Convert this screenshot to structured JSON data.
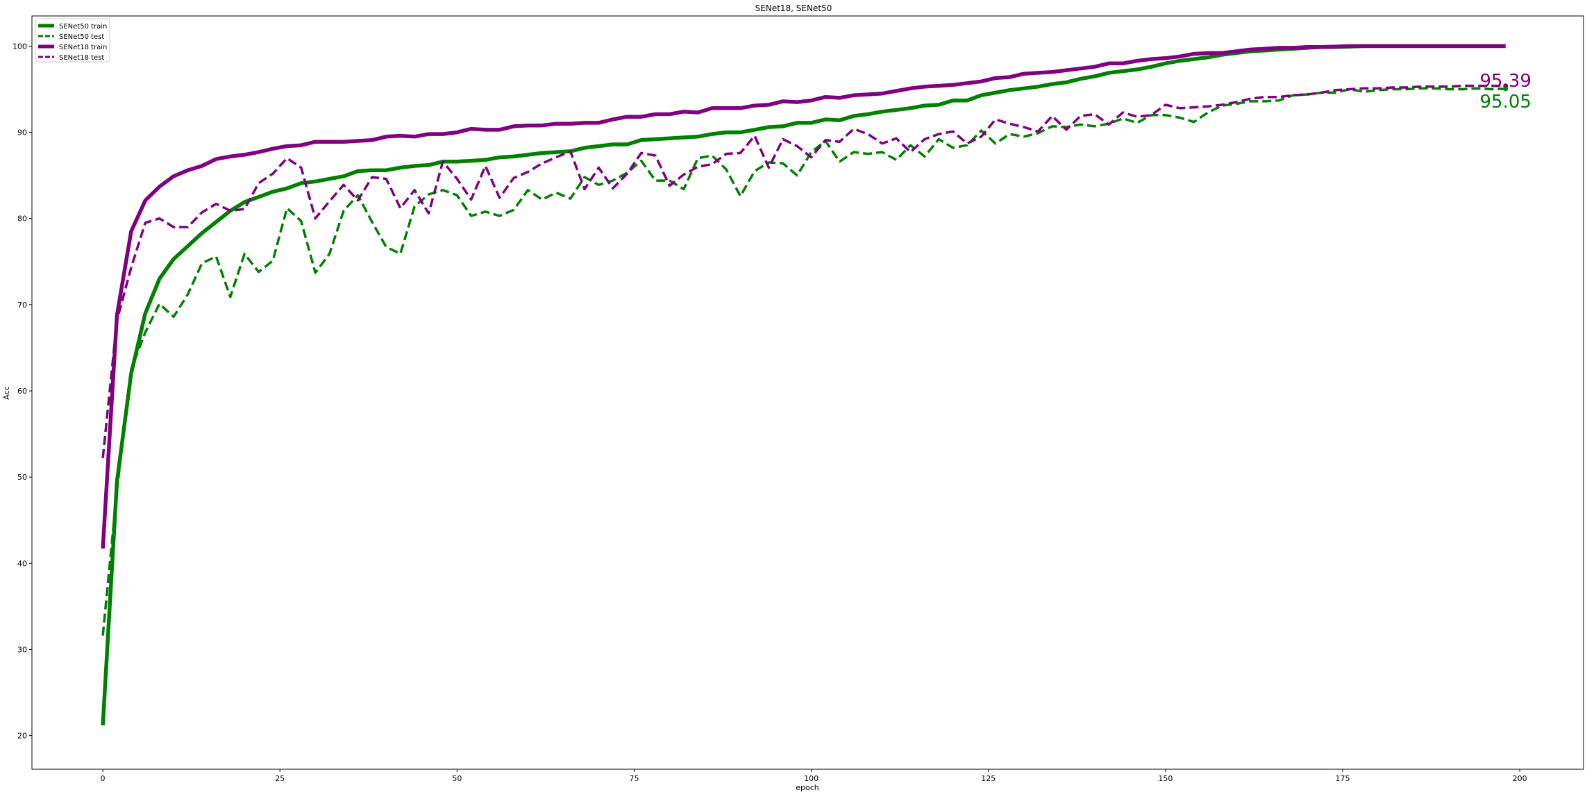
{
  "chart_data": {
    "type": "line",
    "title": "SENet18, SENet50",
    "xlabel": "epoch",
    "ylabel": "Acc",
    "xlim": [
      -10,
      209
    ],
    "ylim": [
      16.1,
      103.5
    ],
    "xticks": [
      0,
      25,
      50,
      75,
      100,
      125,
      150,
      175,
      200
    ],
    "yticks": [
      20,
      30,
      40,
      50,
      60,
      70,
      80,
      90,
      100
    ],
    "grid": false,
    "legend_position": "upper left",
    "series": [
      {
        "name": "SENet50 train",
        "color": "#008000",
        "style": "solid",
        "x": [
          0,
          2,
          4,
          6,
          8,
          10,
          12,
          14,
          16,
          18,
          20,
          22,
          24,
          26,
          28,
          30,
          32,
          34,
          36,
          38,
          40,
          42,
          44,
          46,
          48,
          50,
          52,
          54,
          56,
          58,
          60,
          62,
          64,
          66,
          68,
          70,
          72,
          74,
          76,
          78,
          80,
          82,
          84,
          86,
          88,
          90,
          92,
          94,
          96,
          98,
          100,
          102,
          104,
          106,
          108,
          110,
          112,
          114,
          116,
          118,
          120,
          122,
          124,
          126,
          128,
          130,
          132,
          134,
          136,
          138,
          140,
          142,
          144,
          146,
          148,
          150,
          152,
          154,
          156,
          158,
          160,
          162,
          164,
          166,
          168,
          170,
          172,
          174,
          176,
          178,
          180,
          182,
          184,
          186,
          188,
          190,
          192,
          194,
          196,
          198
        ],
        "y": [
          21.2,
          49.5,
          62,
          69,
          73,
          75.3,
          76.8,
          78.3,
          79.6,
          80.9,
          81.9,
          82.5,
          83.1,
          83.5,
          84.1,
          84.3,
          84.6,
          84.9,
          85.5,
          85.6,
          85.6,
          85.9,
          86.1,
          86.2,
          86.6,
          86.6,
          86.7,
          86.8,
          87.1,
          87.2,
          87.4,
          87.6,
          87.7,
          87.8,
          88.2,
          88.4,
          88.6,
          88.6,
          89.1,
          89.2,
          89.3,
          89.4,
          89.5,
          89.8,
          90,
          90,
          90.3,
          90.6,
          90.7,
          91.1,
          91.1,
          91.5,
          91.4,
          91.9,
          92.1,
          92.4,
          92.6,
          92.8,
          93.1,
          93.2,
          93.7,
          93.7,
          94.3,
          94.6,
          94.9,
          95.1,
          95.3,
          95.6,
          95.8,
          96.2,
          96.5,
          96.9,
          97.1,
          97.3,
          97.6,
          98,
          98.3,
          98.5,
          98.7,
          99,
          99.2,
          99.4,
          99.5,
          99.6,
          99.7,
          99.8,
          99.9,
          99.9,
          99.95,
          100,
          100,
          100,
          100,
          100,
          100,
          100,
          100,
          100,
          100,
          100
        ]
      },
      {
        "name": "SENet50 test",
        "color": "#008000",
        "style": "dashed",
        "x": [
          0,
          2,
          4,
          6,
          8,
          10,
          12,
          14,
          16,
          18,
          20,
          22,
          24,
          26,
          28,
          30,
          32,
          34,
          36,
          38,
          40,
          42,
          44,
          46,
          48,
          50,
          52,
          54,
          56,
          58,
          60,
          62,
          64,
          66,
          68,
          70,
          72,
          74,
          76,
          78,
          80,
          82,
          84,
          86,
          88,
          90,
          92,
          94,
          96,
          98,
          100,
          102,
          104,
          106,
          108,
          110,
          112,
          114,
          116,
          118,
          120,
          122,
          124,
          126,
          128,
          130,
          132,
          134,
          136,
          138,
          140,
          142,
          144,
          146,
          148,
          150,
          152,
          154,
          156,
          158,
          160,
          162,
          164,
          166,
          168,
          170,
          172,
          174,
          176,
          178,
          180,
          182,
          184,
          186,
          188,
          190,
          192,
          194,
          196,
          198
        ],
        "y": [
          31.6,
          48.5,
          62.5,
          66.8,
          70.1,
          68.6,
          71.2,
          74.8,
          75.6,
          70.9,
          75.9,
          73.8,
          75.1,
          81.2,
          79.7,
          73.7,
          75.9,
          80.9,
          82.7,
          79.6,
          76.7,
          75.9,
          81.4,
          82.8,
          83.3,
          82.7,
          80.3,
          80.8,
          80.3,
          81,
          83.3,
          82.2,
          83,
          82.3,
          84.8,
          83.9,
          84.4,
          85.3,
          86.7,
          84.4,
          84.4,
          83.4,
          87,
          87.3,
          85.7,
          82.6,
          85.5,
          86.5,
          86.4,
          85,
          87.7,
          89,
          86.6,
          87.7,
          87.5,
          87.7,
          86.8,
          88.5,
          87.2,
          89.2,
          88.2,
          88.5,
          90.2,
          88.7,
          89.8,
          89.5,
          89.9,
          90.7,
          90.6,
          90.9,
          90.7,
          91,
          91.6,
          91.1,
          92,
          92,
          91.7,
          91.2,
          92.3,
          93.1,
          93.3,
          93.6,
          93.6,
          93.7,
          94.3,
          94.4,
          94.6,
          94.6,
          95,
          94.7,
          94.9,
          95,
          95,
          95.1,
          95.1,
          95,
          95,
          95.1,
          95,
          95.05
        ]
      },
      {
        "name": "SENet18 train",
        "color": "#800080",
        "style": "solid",
        "x": [
          0,
          2,
          4,
          6,
          8,
          10,
          12,
          14,
          16,
          18,
          20,
          22,
          24,
          26,
          28,
          30,
          32,
          34,
          36,
          38,
          40,
          42,
          44,
          46,
          48,
          50,
          52,
          54,
          56,
          58,
          60,
          62,
          64,
          66,
          68,
          70,
          72,
          74,
          76,
          78,
          80,
          82,
          84,
          86,
          88,
          90,
          92,
          94,
          96,
          98,
          100,
          102,
          104,
          106,
          108,
          110,
          112,
          114,
          116,
          118,
          120,
          122,
          124,
          126,
          128,
          130,
          132,
          134,
          136,
          138,
          140,
          142,
          144,
          146,
          148,
          150,
          152,
          154,
          156,
          158,
          160,
          162,
          164,
          166,
          168,
          170,
          172,
          174,
          176,
          178,
          180,
          182,
          184,
          186,
          188,
          190,
          192,
          194,
          196,
          198
        ],
        "y": [
          41.7,
          68.8,
          78.5,
          82.1,
          83.7,
          84.9,
          85.6,
          86.1,
          86.9,
          87.2,
          87.4,
          87.7,
          88.1,
          88.4,
          88.5,
          88.9,
          88.9,
          88.9,
          89,
          89.1,
          89.5,
          89.6,
          89.5,
          89.8,
          89.8,
          90,
          90.4,
          90.3,
          90.3,
          90.7,
          90.8,
          90.8,
          91,
          91,
          91.1,
          91.1,
          91.5,
          91.8,
          91.8,
          92.1,
          92.1,
          92.4,
          92.3,
          92.8,
          92.8,
          92.8,
          93.1,
          93.2,
          93.6,
          93.5,
          93.7,
          94.1,
          94,
          94.3,
          94.4,
          94.5,
          94.8,
          95.1,
          95.3,
          95.4,
          95.5,
          95.7,
          95.9,
          96.3,
          96.4,
          96.8,
          96.9,
          97,
          97.2,
          97.4,
          97.6,
          98,
          98,
          98.3,
          98.5,
          98.6,
          98.8,
          99.1,
          99.2,
          99.2,
          99.4,
          99.6,
          99.7,
          99.8,
          99.8,
          99.9,
          99.9,
          99.95,
          100,
          100,
          100,
          100,
          100,
          100,
          100,
          100,
          100,
          100,
          100,
          100
        ]
      },
      {
        "name": "SENet18 test",
        "color": "#800080",
        "style": "dashed",
        "x": [
          0,
          2,
          4,
          6,
          8,
          10,
          12,
          14,
          16,
          18,
          20,
          22,
          24,
          26,
          28,
          30,
          32,
          34,
          36,
          38,
          40,
          42,
          44,
          46,
          48,
          50,
          52,
          54,
          56,
          58,
          60,
          62,
          64,
          66,
          68,
          70,
          72,
          74,
          76,
          78,
          80,
          82,
          84,
          86,
          88,
          90,
          92,
          94,
          96,
          98,
          100,
          102,
          104,
          106,
          108,
          110,
          112,
          114,
          116,
          118,
          120,
          122,
          124,
          126,
          128,
          130,
          132,
          134,
          136,
          138,
          140,
          142,
          144,
          146,
          148,
          150,
          152,
          154,
          156,
          158,
          160,
          162,
          164,
          166,
          168,
          170,
          172,
          174,
          176,
          178,
          180,
          182,
          184,
          186,
          188,
          190,
          192,
          194,
          196,
          198
        ],
        "y": [
          52.2,
          68.2,
          74.3,
          79.5,
          80,
          79,
          79,
          80.7,
          81.7,
          80.9,
          81.1,
          84.1,
          85.2,
          87,
          85.9,
          80,
          82,
          83.9,
          82.1,
          84.8,
          84.6,
          81.2,
          83.3,
          80.6,
          86.6,
          84.6,
          82.2,
          86.1,
          82.4,
          84.7,
          85.4,
          86.4,
          87.1,
          87.8,
          83.4,
          85.9,
          83.5,
          85.2,
          87.6,
          87.3,
          83.8,
          85.1,
          86,
          86.3,
          87.5,
          87.6,
          89.6,
          85.9,
          89.2,
          88.4,
          87.1,
          89.1,
          88.9,
          90.4,
          89.8,
          88.7,
          89.3,
          87.7,
          89.2,
          89.8,
          90.1,
          88.7,
          89.5,
          91.5,
          91,
          90.6,
          90.1,
          91.9,
          90.3,
          91.9,
          92.1,
          90.9,
          92.3,
          91.8,
          92,
          93.2,
          92.8,
          92.9,
          93,
          93.2,
          93.5,
          93.9,
          94.1,
          94.1,
          94.3,
          94.4,
          94.6,
          94.9,
          95,
          95.1,
          95.1,
          95.2,
          95.2,
          95.3,
          95.3,
          95.3,
          95.4,
          95.4,
          95.4,
          95.39
        ]
      }
    ],
    "annotations": [
      {
        "text": "95.39",
        "x": 198,
        "y": 95.39,
        "color": "#800080"
      },
      {
        "text": "95.05",
        "x": 198,
        "y": 95.05,
        "color": "#008000"
      }
    ]
  }
}
